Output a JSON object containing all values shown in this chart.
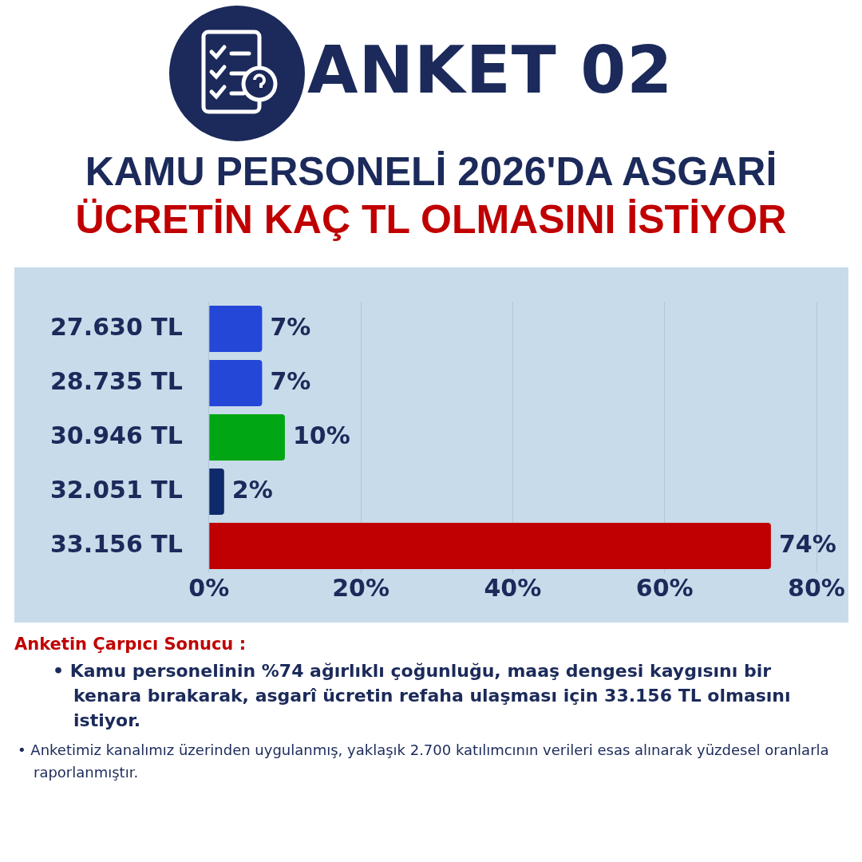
{
  "chart_data": {
    "type": "bar",
    "orientation": "horizontal",
    "title": "ANKET 02",
    "subtitle": "KAMU PERSONELİ 2026'DA ASGARİ ÜCRETİN KAÇ TL OLMASINI İSTİYOR",
    "categories": [
      "27.630 TL",
      "28.735 TL",
      "30.946 TL",
      "32.051 TL",
      "33.156 TL"
    ],
    "values": [
      7,
      7,
      10,
      2,
      74
    ],
    "colors": [
      "#2447d8",
      "#2447d8",
      "#00a614",
      "#0f2a6b",
      "#c00000"
    ],
    "value_labels": [
      "7%",
      "7%",
      "10%",
      "2%",
      "74%"
    ],
    "xlim": [
      0,
      80
    ],
    "xticks": [
      {
        "value": 0,
        "label": "0%"
      },
      {
        "value": 20,
        "label": "20%"
      },
      {
        "value": 40,
        "label": "40%"
      },
      {
        "value": 60,
        "label": "60%"
      },
      {
        "value": 80,
        "label": "80%"
      }
    ],
    "grid": "x",
    "legend": false,
    "annotations": [
      "Anketin Çarpıcı Sonucu :",
      "•  Kamu personelinin %74 ağırlıklı çoğunluğu, maaş dengesi kaygısını bir kenara bırakarak, asgarî ücretin refaha ulaşması için 33.156 TL olmasını istiyor.",
      "•  Anketimiz kanalımız üzerinden uygulanmış, yaklaşık 2.700 katılımcının verileri esas alınarak yüzdesel oranlarla raporlanmıştır."
    ]
  }
}
